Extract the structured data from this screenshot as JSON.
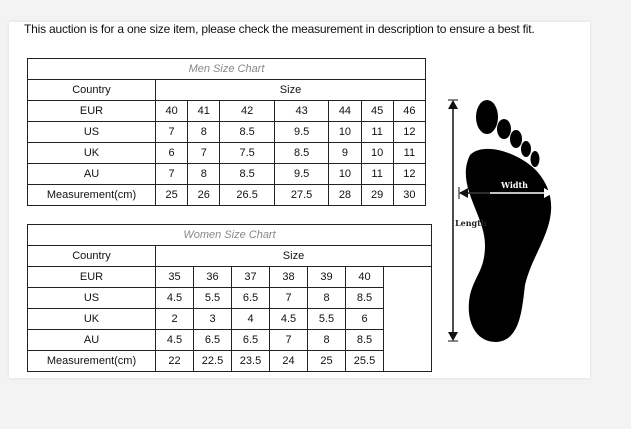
{
  "notice": "This auction is for a one size item, please check the measurement in description to ensure a best fit.",
  "men": {
    "title": "Men Size Chart",
    "country_header": "Country",
    "size_header": "Size",
    "rows": [
      {
        "label": "EUR",
        "values": [
          "40",
          "41",
          "42",
          "43",
          "44",
          "45",
          "46"
        ]
      },
      {
        "label": "US",
        "values": [
          "7",
          "8",
          "8.5",
          "9.5",
          "10",
          "11",
          "12"
        ]
      },
      {
        "label": "UK",
        "values": [
          "6",
          "7",
          "7.5",
          "8.5",
          "9",
          "10",
          "11"
        ]
      },
      {
        "label": "AU",
        "values": [
          "7",
          "8",
          "8.5",
          "9.5",
          "10",
          "11",
          "12"
        ]
      },
      {
        "label": "Measurement(cm)",
        "values": [
          "25",
          "26",
          "26.5",
          "27.5",
          "28",
          "29",
          "30"
        ]
      }
    ]
  },
  "women": {
    "title": "Women Size Chart",
    "country_header": "Country",
    "size_header": "Size",
    "rows": [
      {
        "label": "EUR",
        "values": [
          "35",
          "36",
          "37",
          "38",
          "39",
          "40"
        ]
      },
      {
        "label": "US",
        "values": [
          "4.5",
          "5.5",
          "6.5",
          "7",
          "8",
          "8.5"
        ]
      },
      {
        "label": "UK",
        "values": [
          "2",
          "3",
          "4",
          "4.5",
          "5.5",
          "6"
        ]
      },
      {
        "label": "AU",
        "values": [
          "4.5",
          "6.5",
          "6.5",
          "7",
          "8",
          "8.5"
        ]
      },
      {
        "label": "Measurement(cm)",
        "values": [
          "22",
          "22.5",
          "23.5",
          "24",
          "25",
          "25.5"
        ]
      }
    ]
  },
  "diagram": {
    "width_label": "Width",
    "length_label": "Length"
  }
}
